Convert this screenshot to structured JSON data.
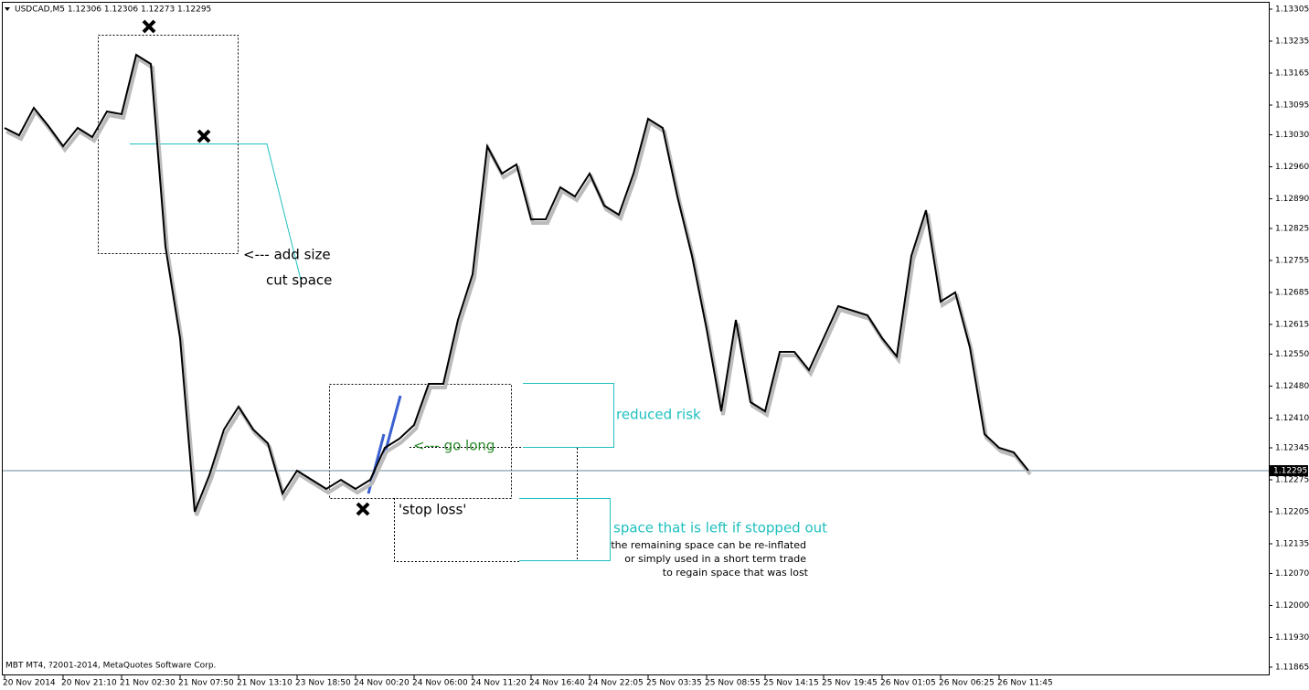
{
  "chart_data": {
    "type": "line",
    "title": "USDCAD,M5  1.12306 1.12306 1.12273 1.12295",
    "footer": "MBT MT4, ?2001-2014, MetaQuotes Software Corp.",
    "categories": [
      "20 Nov 2014",
      null,
      null,
      null,
      "20 Nov 21:10",
      null,
      null,
      null,
      "21 Nov 02:30",
      null,
      null,
      null,
      "21 Nov 07:50",
      null,
      null,
      null,
      "21 Nov 13:10",
      null,
      null,
      null,
      "23 Nov 18:50",
      null,
      null,
      null,
      "24 Nov 00:20",
      null,
      null,
      null,
      "24 Nov 06:00",
      null,
      null,
      null,
      "24 Nov 11:20",
      null,
      null,
      null,
      "24 Nov 16:40",
      null,
      null,
      null,
      "24 Nov 22:05",
      null,
      null,
      null,
      "25 Nov 03:35",
      null,
      null,
      null,
      "25 Nov 08:55",
      null,
      null,
      null,
      "25 Nov 14:15",
      null,
      null,
      null,
      "25 Nov 19:45",
      null,
      null,
      null,
      "26 Nov 01:05",
      null,
      null,
      null,
      "26 Nov 06:25",
      null,
      null,
      null,
      "26 Nov 11:45",
      null,
      null
    ],
    "values": [
      1.13045,
      1.13029,
      1.13089,
      1.13049,
      1.13005,
      1.13045,
      1.13025,
      1.13081,
      1.13075,
      1.13205,
      1.13185,
      1.12785,
      1.12585,
      1.12205,
      1.12285,
      1.12385,
      1.12435,
      1.12385,
      1.12355,
      1.12245,
      1.12295,
      1.12275,
      1.12255,
      1.12275,
      1.12255,
      1.12275,
      1.12345,
      1.12365,
      1.12395,
      1.12485,
      1.12485,
      1.12625,
      1.12725,
      1.13005,
      1.12945,
      1.12965,
      1.12845,
      1.12845,
      1.12915,
      1.12895,
      1.12945,
      1.12875,
      1.12855,
      1.12945,
      1.13065,
      1.13045,
      1.12895,
      1.12765,
      1.12605,
      1.12425,
      1.12625,
      1.12445,
      1.12425,
      1.12555,
      1.12555,
      1.12515,
      1.12585,
      1.12655,
      1.12645,
      1.12635,
      1.12585,
      1.12545,
      1.12765,
      1.12865,
      1.12665,
      1.12685,
      1.12565,
      1.12375,
      1.12345,
      1.12335,
      1.12295
    ],
    "color": "#000000",
    "ylim": [
      1.11865,
      1.13305
    ],
    "yticks": [
      1.13305,
      1.13235,
      1.13165,
      1.13095,
      {
        "value": 1.1303,
        "label": "1.13030"
      },
      {
        "value": 1.1296,
        "label": "1.12960"
      },
      {
        "value": 1.1289,
        "label": "1.12890"
      },
      1.12825,
      1.12755,
      1.12685,
      1.12615,
      {
        "value": 1.1255,
        "label": "1.12550"
      },
      {
        "value": 1.1248,
        "label": "1.12480"
      },
      {
        "value": 1.1241,
        "label": "1.12410"
      },
      1.12345,
      1.12275,
      1.12205,
      1.12135,
      {
        "value": 1.1207,
        "label": "1.12070"
      },
      {
        "value": 1.12,
        "label": "1.12000"
      },
      {
        "value": 1.1193,
        "label": "1.11930"
      },
      1.11865
    ],
    "last_price": 1.12295,
    "annotations": {
      "add_size": "<--- add size",
      "cut_space": "cut space",
      "reduced_risk": "reduced risk",
      "go_long": "<--- go long",
      "stop_loss": "'stop loss'",
      "space_left": "space that is left if stopped out",
      "note_1": "the remaining space can be re-inflated",
      "note_2": "or simply used in a short term trade",
      "note_3": "to regain space that was lost"
    }
  }
}
